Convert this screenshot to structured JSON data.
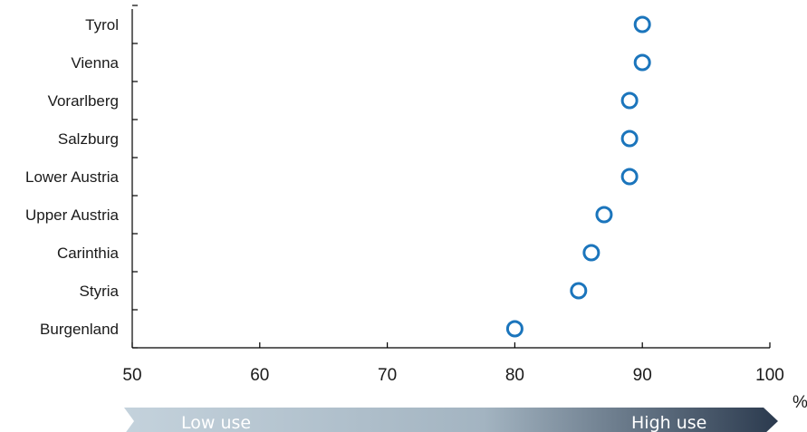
{
  "chart_data": {
    "type": "scatter",
    "categories": [
      "Tyrol",
      "Vienna",
      "Vorarlberg",
      "Salzburg",
      "Lower Austria",
      "Upper Austria",
      "Carinthia",
      "Styria",
      "Burgenland"
    ],
    "values": [
      90,
      90,
      89,
      89,
      89,
      87,
      86,
      85,
      80
    ],
    "xlim": [
      50,
      100
    ],
    "xticks": [
      "50",
      "60",
      "70",
      "80",
      "90",
      "100"
    ],
    "xunit": "%",
    "orientation": "horizontal",
    "grid": false,
    "marker_color": "#1b75bc"
  },
  "band": {
    "low_label": "Low use",
    "high_label": "High use",
    "color_start": "#c4d2dc",
    "color_end": "#2b3a4e"
  }
}
